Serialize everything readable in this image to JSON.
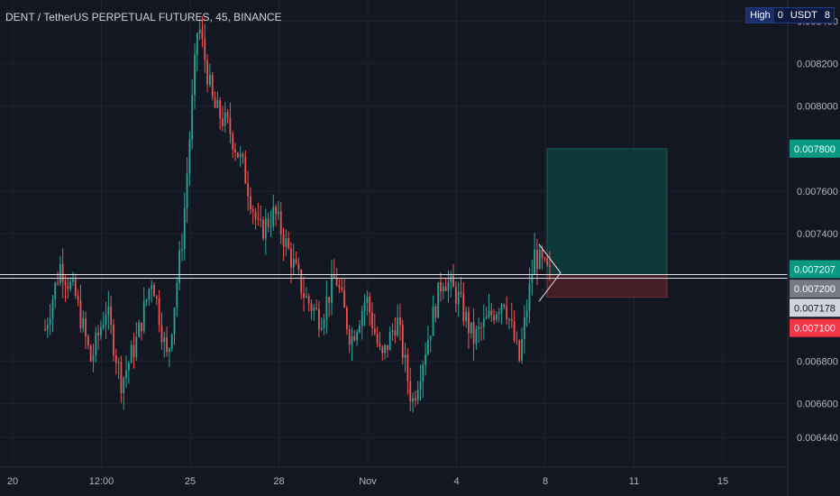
{
  "header": {
    "title": "DENT / TetherUS PERPETUAL FUTURES, 45, BINANCE"
  },
  "hud": {
    "label": "High",
    "value": "0",
    "unit": "USDT",
    "extra": "8"
  },
  "colors": {
    "background": "#131722",
    "up": "#26a69a",
    "down": "#ef5350",
    "target_zone": "#0e3b3b",
    "stop_zone": "#4a1f26",
    "grid": "#1e222d",
    "text": "#b2b5be"
  },
  "chart_data": {
    "type": "candlestick",
    "x_ticks": [
      "20",
      "12:00",
      "25",
      "28",
      "Nov",
      "4",
      "8",
      "11",
      "15"
    ],
    "y_ticks": [
      "0.008400",
      "0.008200",
      "0.008000",
      "0.007600",
      "0.007400",
      "0.006800",
      "0.006600",
      "0.006440"
    ],
    "ylim": [
      0.0063,
      0.0085
    ],
    "price_labels": [
      {
        "value": 0.0078,
        "text": "0.007800",
        "role": "target"
      },
      {
        "value": 0.007207,
        "text": "0.007207",
        "role": "entry"
      },
      {
        "value": 0.0072,
        "text": "0.007200",
        "role": "level"
      },
      {
        "value": 0.007178,
        "text": "0.007178",
        "role": "current"
      },
      {
        "value": 0.0071,
        "text": "0.007100",
        "role": "stop"
      }
    ],
    "horizontal_lines": [
      0.007207,
      0.00719
    ],
    "position": {
      "entry": 0.007207,
      "target": 0.0078,
      "stop": 0.0071
    },
    "price_path": [
      0.00695,
      0.00725,
      0.0071,
      0.0068,
      0.00705,
      0.0067,
      0.0069,
      0.0072,
      0.0068,
      0.0074,
      0.0084,
      0.008,
      0.0079,
      0.0077,
      0.0074,
      0.0075,
      0.0073,
      0.0071,
      0.007,
      0.0072,
      0.0069,
      0.0071,
      0.0068,
      0.007,
      0.0066,
      0.0069,
      0.0072,
      0.0071,
      0.0069,
      0.007,
      0.0071,
      0.0068,
      0.0073,
      0.0072
    ]
  }
}
